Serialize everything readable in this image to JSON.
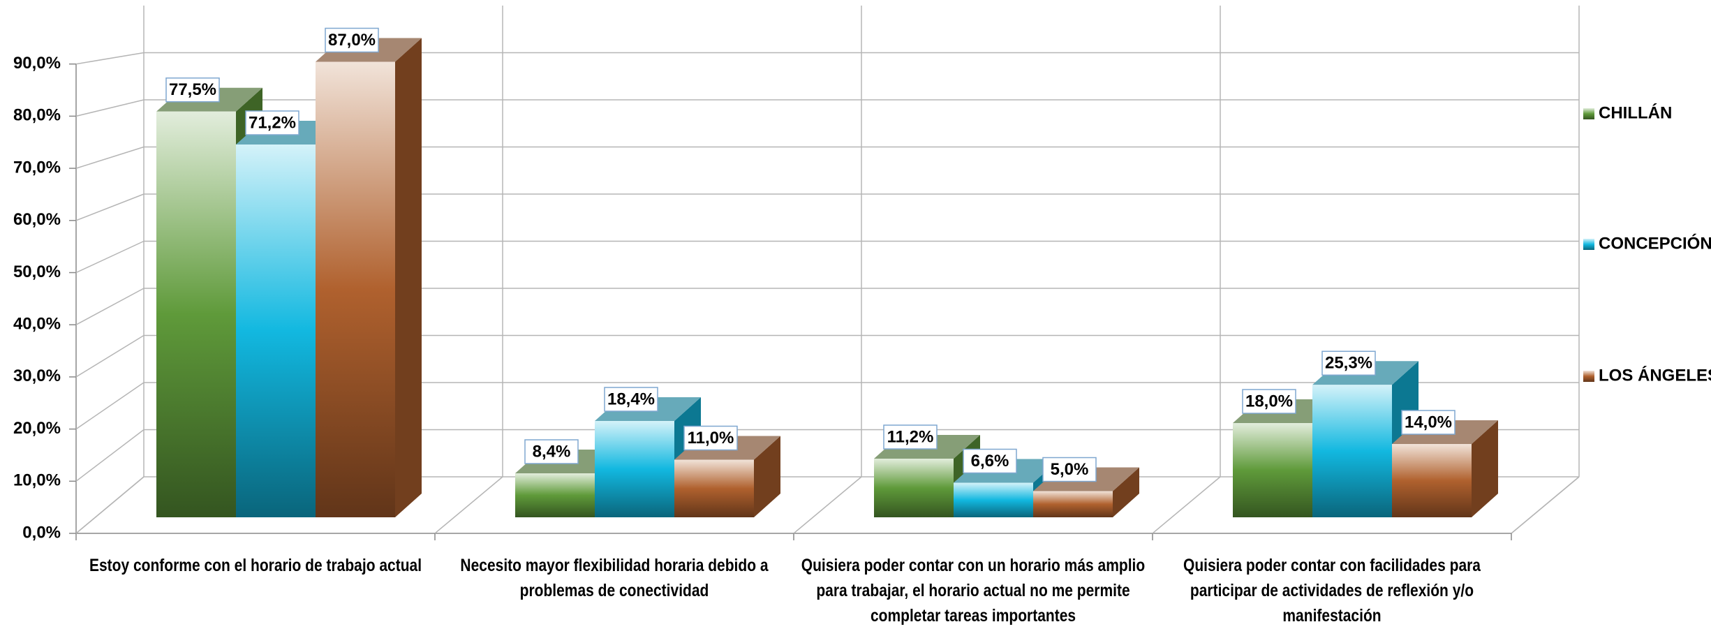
{
  "chart_data": {
    "type": "bar3d",
    "categories": [
      "Estoy conforme con el horario de trabajo actual",
      "Necesito mayor flexibilidad horaria debido a problemas de conectividad",
      "Quisiera poder contar con un horario más amplio para trabajar, el horario actual no me permite completar tareas importantes",
      "Quisiera poder contar con facilidades para participar de actividades de reflexión y/o manifestación"
    ],
    "series": [
      {
        "name": "CHILLÁN",
        "color": "#5f9a3a",
        "values": [
          77.5,
          8.4,
          11.2,
          18.0
        ],
        "value_labels": [
          "77,5%",
          "8,4%",
          "11,2%",
          "18,0%"
        ]
      },
      {
        "name": "CONCEPCIÓN",
        "color": "#12b8e0",
        "values": [
          71.2,
          18.4,
          6.6,
          25.3
        ],
        "value_labels": [
          "71,2%",
          "18,4%",
          "6,6%",
          "25,3%"
        ]
      },
      {
        "name": "LOS ÁNGELES",
        "color": "#b0612e",
        "values": [
          87.0,
          11.0,
          5.0,
          14.0
        ],
        "value_labels": [
          "87,0%",
          "11,0%",
          "5,0%",
          "14,0%"
        ]
      }
    ],
    "ylim": [
      0,
      100
    ],
    "yticks": [
      {
        "value": 0,
        "label": "0,0%"
      },
      {
        "value": 10,
        "label": "10,0%"
      },
      {
        "value": 20,
        "label": "20,0%"
      },
      {
        "value": 30,
        "label": "30,0%"
      },
      {
        "value": 40,
        "label": "40,0%"
      },
      {
        "value": 50,
        "label": "50,0%"
      },
      {
        "value": 60,
        "label": "60,0%"
      },
      {
        "value": 70,
        "label": "70,0%"
      },
      {
        "value": 80,
        "label": "80,0%"
      },
      {
        "value": 90,
        "label": "90,0%"
      }
    ],
    "grid": true,
    "legend": "right"
  }
}
